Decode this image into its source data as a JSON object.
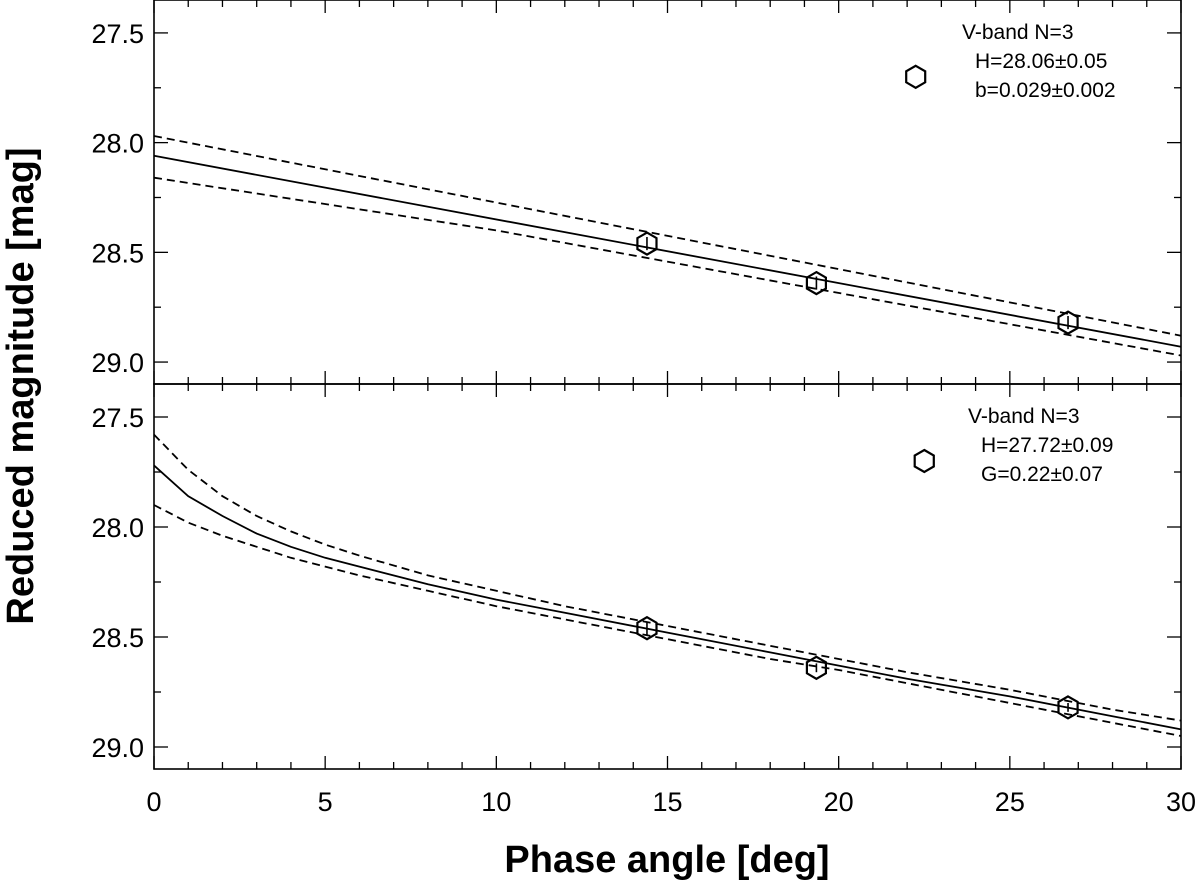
{
  "chart_data": {
    "type": "scatter",
    "xlabel": "Phase angle [deg]",
    "ylabel": "Reduced magnitude [mag]",
    "xlim": [
      0,
      30
    ],
    "x_ticks": [
      0,
      5,
      10,
      15,
      20,
      25,
      30
    ],
    "x_tick_labels": [
      "0",
      "5",
      "10",
      "15",
      "20",
      "25",
      "30"
    ],
    "x_minor_step": 1,
    "colors": {
      "line": "#000000",
      "background": "#ffffff"
    },
    "panels": [
      {
        "id": "linear",
        "ylim": [
          29.1,
          27.35
        ],
        "y_ticks": [
          27.5,
          28.0,
          28.5,
          29.0
        ],
        "y_tick_labels": [
          "27.5",
          "28.0",
          "28.5",
          "29.0"
        ],
        "points": {
          "x": [
            14.4,
            19.35,
            26.7
          ],
          "y": [
            28.46,
            28.64,
            28.82
          ],
          "yerr": [
            0.03,
            0.03,
            0.03
          ]
        },
        "curves": [
          {
            "name": "fit",
            "style": "solid",
            "x": [
              0,
              30
            ],
            "y": [
              28.06,
              28.93
            ]
          },
          {
            "name": "upper",
            "style": "dashed",
            "x": [
              0,
              30
            ],
            "y": [
              27.97,
              28.88
            ]
          },
          {
            "name": "lower",
            "style": "dashed",
            "x": [
              0,
              10,
              30
            ],
            "y": [
              28.16,
              28.4,
              28.97
            ]
          }
        ],
        "legend": {
          "title": "V-band N=3",
          "line1": "H=28.06±0.05",
          "line2": "b=0.029±0.002",
          "marker_x": 22.25,
          "marker_y": 27.7
        }
      },
      {
        "id": "hg",
        "ylim": [
          29.1,
          27.35
        ],
        "y_ticks": [
          27.5,
          28.0,
          28.5,
          29.0
        ],
        "y_tick_labels": [
          "27.5",
          "28.0",
          "28.5",
          "29.0"
        ],
        "points": {
          "x": [
            14.4,
            19.35,
            26.7
          ],
          "y": [
            28.46,
            28.64,
            28.82
          ],
          "yerr": [
            0.03,
            0.02,
            0.02
          ]
        },
        "curves": [
          {
            "name": "fit",
            "style": "solid",
            "x": [
              0,
              1,
              2,
              3,
              4,
              5,
              6,
              8,
              10,
              12,
              15,
              18,
              20,
              22,
              25,
              28,
              30
            ],
            "y": [
              27.72,
              27.86,
              27.95,
              28.03,
              28.09,
              28.14,
              28.18,
              28.26,
              28.33,
              28.39,
              28.48,
              28.57,
              28.63,
              28.69,
              28.77,
              28.86,
              28.92
            ]
          },
          {
            "name": "upper",
            "style": "dashed",
            "x": [
              0,
              1,
              2,
              3,
              4,
              5,
              6,
              8,
              10,
              12,
              15,
              18,
              20,
              22,
              25,
              28,
              30
            ],
            "y": [
              27.58,
              27.74,
              27.86,
              27.95,
              28.02,
              28.08,
              28.13,
              28.22,
              28.29,
              28.36,
              28.45,
              28.54,
              28.6,
              28.66,
              28.74,
              28.83,
              28.88
            ]
          },
          {
            "name": "lower",
            "style": "dashed",
            "x": [
              0,
              1,
              2,
              3,
              4,
              5,
              6,
              8,
              10,
              12,
              15,
              18,
              20,
              22,
              25,
              28,
              30
            ],
            "y": [
              27.9,
              27.98,
              28.04,
              28.09,
              28.14,
              28.18,
              28.22,
              28.29,
              28.36,
              28.42,
              28.51,
              28.6,
              28.65,
              28.71,
              28.8,
              28.89,
              28.95
            ]
          }
        ],
        "legend": {
          "title": "V-band N=3",
          "line1": "H=27.72±0.09",
          "line2": "G=0.22±0.07",
          "marker_x": 22.5,
          "marker_y": 27.7
        }
      }
    ]
  }
}
